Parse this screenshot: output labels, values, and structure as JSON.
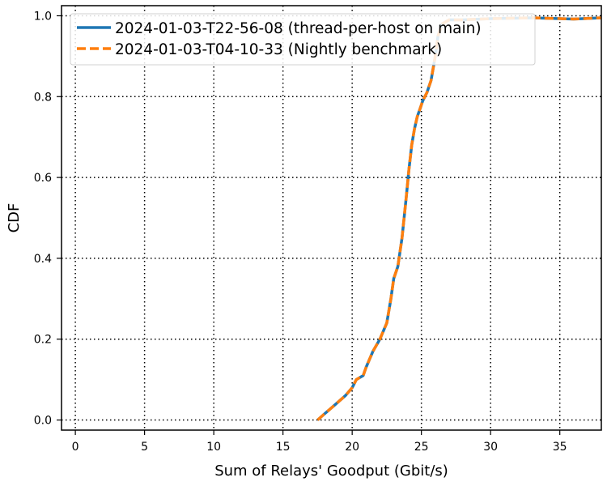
{
  "chart_data": {
    "type": "line",
    "xlabel": "Sum of Relays' Goodput (Gbit/s)",
    "ylabel": "CDF",
    "xlim": [
      -1,
      38
    ],
    "ylim": [
      -0.025,
      1.025
    ],
    "x_ticks": [
      0,
      5,
      10,
      15,
      20,
      25,
      30,
      35
    ],
    "y_ticks": [
      0.0,
      0.2,
      0.4,
      0.6,
      0.8,
      1.0
    ],
    "x_tick_labels": [
      "0",
      "5",
      "10",
      "15",
      "20",
      "25",
      "30",
      "35"
    ],
    "y_tick_labels": [
      "0.0",
      "0.2",
      "0.4",
      "0.6",
      "0.8",
      "1.0"
    ],
    "grid": true,
    "grid_style": "dotted",
    "legend_position": "top-left",
    "series": [
      {
        "name": "2024-01-03-T22-56-08 (thread-per-host on main)",
        "color": "#1f77b4",
        "style": "solid",
        "x": [
          17.5,
          18.0,
          18.5,
          19.0,
          19.5,
          20.0,
          20.3,
          20.8,
          21.0,
          21.5,
          22.0,
          22.5,
          22.8,
          23.0,
          23.3,
          23.6,
          23.9,
          24.1,
          24.3,
          24.5,
          24.7,
          24.9,
          25.1,
          25.4,
          25.7,
          26.0,
          26.2,
          26.5,
          27.0,
          28.0,
          30.0,
          33.0,
          36.0,
          38.0
        ],
        "y": [
          0.0,
          0.015,
          0.03,
          0.045,
          0.06,
          0.08,
          0.1,
          0.11,
          0.13,
          0.17,
          0.2,
          0.24,
          0.3,
          0.35,
          0.38,
          0.45,
          0.55,
          0.62,
          0.68,
          0.72,
          0.75,
          0.77,
          0.79,
          0.81,
          0.84,
          0.9,
          0.95,
          0.98,
          0.99,
          0.99,
          0.993,
          0.995,
          0.992,
          0.995
        ]
      },
      {
        "name": "2024-01-03-T04-10-33 (Nightly benchmark)",
        "color": "#ff7f0e",
        "style": "dashed",
        "x": [
          17.5,
          18.0,
          18.5,
          19.0,
          19.5,
          20.0,
          20.3,
          20.8,
          21.0,
          21.5,
          22.0,
          22.5,
          22.8,
          23.0,
          23.3,
          23.6,
          23.9,
          24.1,
          24.3,
          24.5,
          24.7,
          24.9,
          25.1,
          25.4,
          25.7,
          26.0,
          26.2,
          26.5,
          27.0,
          28.0,
          30.0,
          33.0,
          36.0,
          38.0
        ],
        "y": [
          0.0,
          0.015,
          0.03,
          0.045,
          0.06,
          0.08,
          0.1,
          0.11,
          0.13,
          0.17,
          0.2,
          0.24,
          0.3,
          0.35,
          0.38,
          0.45,
          0.55,
          0.62,
          0.68,
          0.72,
          0.75,
          0.77,
          0.79,
          0.81,
          0.84,
          0.9,
          0.95,
          0.98,
          0.99,
          0.99,
          0.993,
          0.995,
          0.992,
          0.995
        ]
      }
    ]
  }
}
